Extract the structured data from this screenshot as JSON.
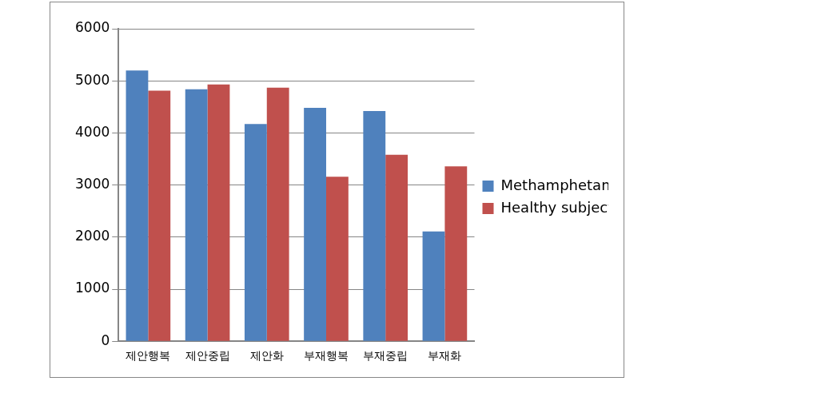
{
  "chart_data": {
    "type": "bar",
    "categories": [
      "제안행복",
      "제안중립",
      "제안화",
      "부재행복",
      "부재중립",
      "부재화"
    ],
    "series": [
      {
        "name": "Methamphetamine use patients",
        "color": "#4f81bd",
        "values": [
          5200,
          4840,
          4170,
          4480,
          4420,
          2110
        ]
      },
      {
        "name": "Healthy subjects",
        "color": "#c0504d",
        "values": [
          4810,
          4930,
          4870,
          3160,
          3580,
          3360
        ]
      }
    ],
    "ylim": [
      0,
      6000
    ],
    "yticks": [
      0,
      1000,
      2000,
      3000,
      4000,
      5000,
      6000
    ],
    "grid": true,
    "legend": "right"
  }
}
